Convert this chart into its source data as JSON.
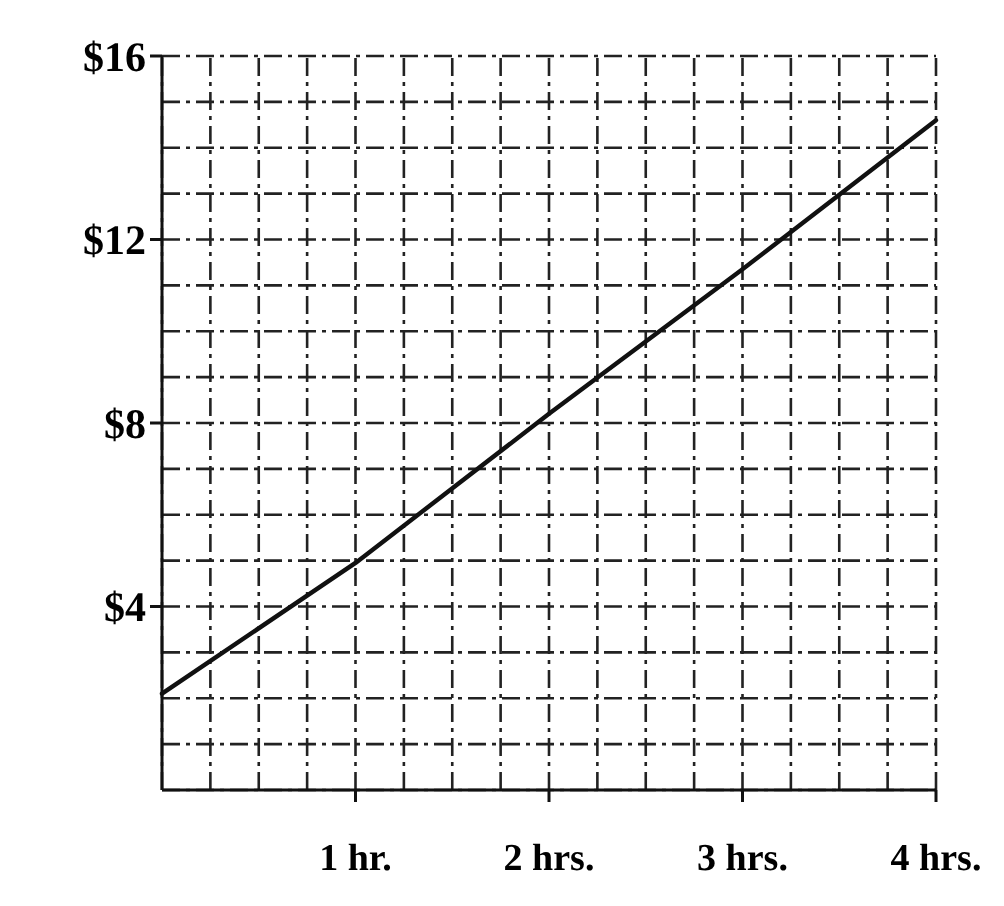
{
  "chart_data": {
    "type": "line",
    "x": [
      0,
      1,
      2,
      3,
      4
    ],
    "values": [
      2.1,
      4.95,
      8.2,
      11.35,
      14.6
    ],
    "color": "#111111",
    "xlim": [
      0,
      4
    ],
    "ylim": [
      0,
      16
    ],
    "xticks": [
      {
        "value": 0,
        "label": null
      },
      {
        "value": 0.25,
        "label": null
      },
      {
        "value": 0.5,
        "label": null
      },
      {
        "value": 0.75,
        "label": null
      },
      {
        "value": 1,
        "label": "1 hr."
      },
      {
        "value": 1.25,
        "label": null
      },
      {
        "value": 1.5,
        "label": null
      },
      {
        "value": 1.75,
        "label": null
      },
      {
        "value": 2,
        "label": "2 hrs."
      },
      {
        "value": 2.25,
        "label": null
      },
      {
        "value": 2.5,
        "label": null
      },
      {
        "value": 2.75,
        "label": null
      },
      {
        "value": 3,
        "label": "3 hrs."
      },
      {
        "value": 3.25,
        "label": null
      },
      {
        "value": 3.5,
        "label": null
      },
      {
        "value": 3.75,
        "label": null
      },
      {
        "value": 4,
        "label": "4 hrs."
      }
    ],
    "yticks": [
      {
        "value": 0,
        "label": null
      },
      {
        "value": 1,
        "label": null
      },
      {
        "value": 2,
        "label": null
      },
      {
        "value": 3,
        "label": null
      },
      {
        "value": 4,
        "label": "$4"
      },
      {
        "value": 5,
        "label": null
      },
      {
        "value": 6,
        "label": null
      },
      {
        "value": 7,
        "label": null
      },
      {
        "value": 8,
        "label": "$8"
      },
      {
        "value": 9,
        "label": null
      },
      {
        "value": 10,
        "label": null
      },
      {
        "value": 11,
        "label": null
      },
      {
        "value": 12,
        "label": "$12"
      },
      {
        "value": 13,
        "label": null
      },
      {
        "value": 14,
        "label": null
      },
      {
        "value": 15,
        "label": null
      },
      {
        "value": 16,
        "label": "$16"
      }
    ],
    "grid": true,
    "marker": "none",
    "line_style": "solid"
  }
}
